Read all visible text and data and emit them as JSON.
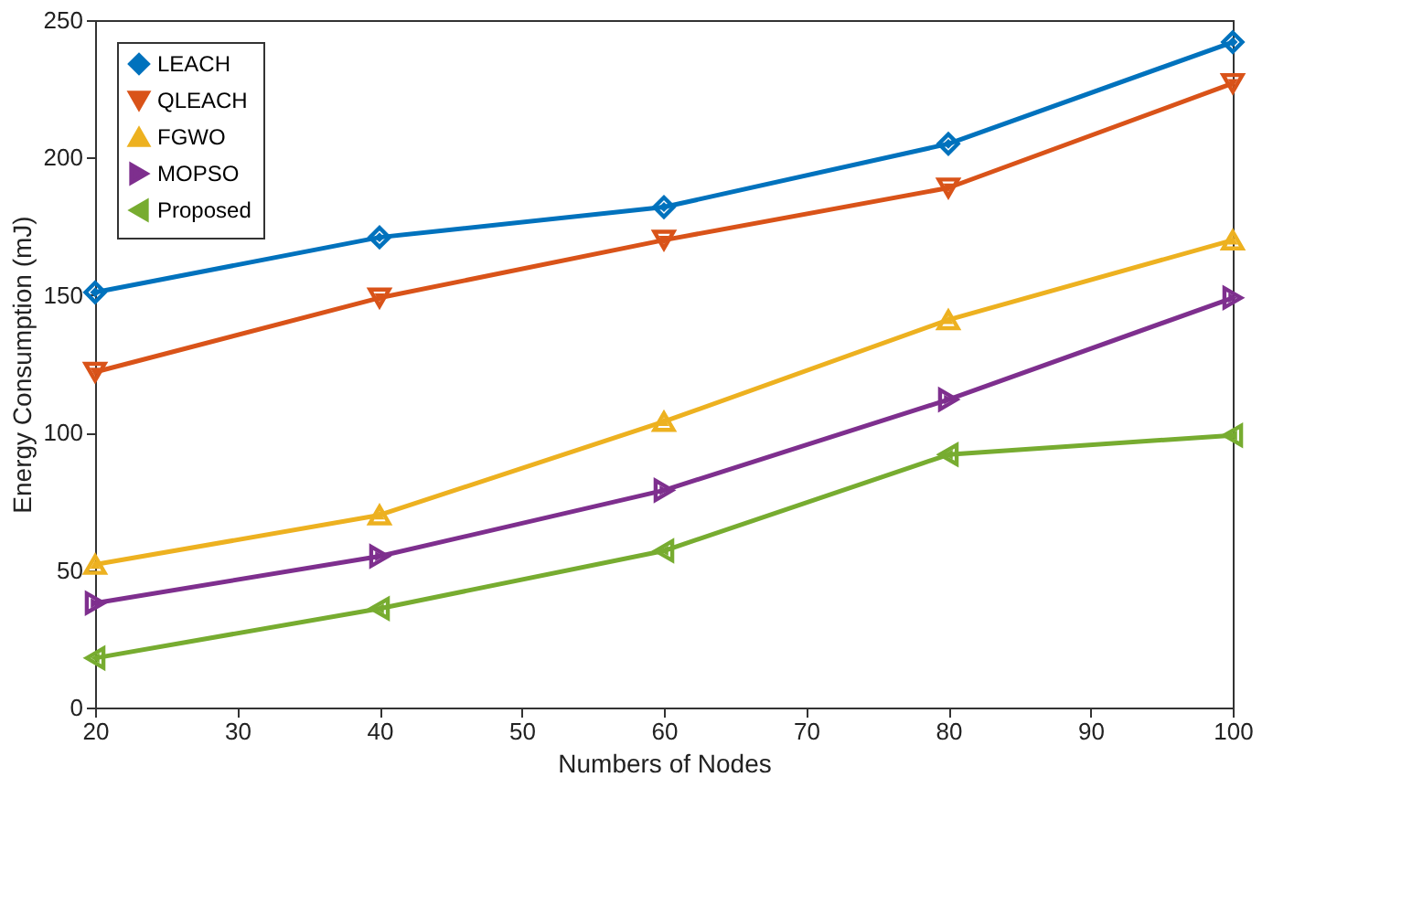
{
  "chart_data": {
    "type": "line",
    "xlabel": "Numbers of Nodes",
    "ylabel": "Energy Consumption (mJ)",
    "x": [
      20,
      40,
      60,
      80,
      100
    ],
    "xlim": [
      20,
      100
    ],
    "xticks": [
      20,
      30,
      40,
      50,
      60,
      70,
      80,
      90,
      100
    ],
    "ylim": [
      0,
      250
    ],
    "yticks": [
      0,
      50,
      100,
      150,
      200,
      250
    ],
    "legend": "top left",
    "grid": false,
    "line_style": "solid",
    "series": [
      {
        "name": "LEACH",
        "color": "#0072bd",
        "marker": "diamond",
        "values": [
          151,
          171,
          182,
          205,
          242
        ]
      },
      {
        "name": "QLEACH",
        "color": "#d95319",
        "marker": "triangle-down",
        "values": [
          122,
          149,
          170,
          189,
          227
        ]
      },
      {
        "name": "FGWO",
        "color": "#edb120",
        "marker": "triangle-up",
        "values": [
          52,
          70,
          104,
          141,
          170
        ]
      },
      {
        "name": "MOPSO",
        "color": "#7e2f8e",
        "marker": "triangle-right",
        "values": [
          38,
          55,
          79,
          112,
          149
        ]
      },
      {
        "name": "Proposed",
        "color": "#77ac30",
        "marker": "triangle-left",
        "values": [
          18,
          36,
          57,
          92,
          99
        ]
      }
    ]
  }
}
